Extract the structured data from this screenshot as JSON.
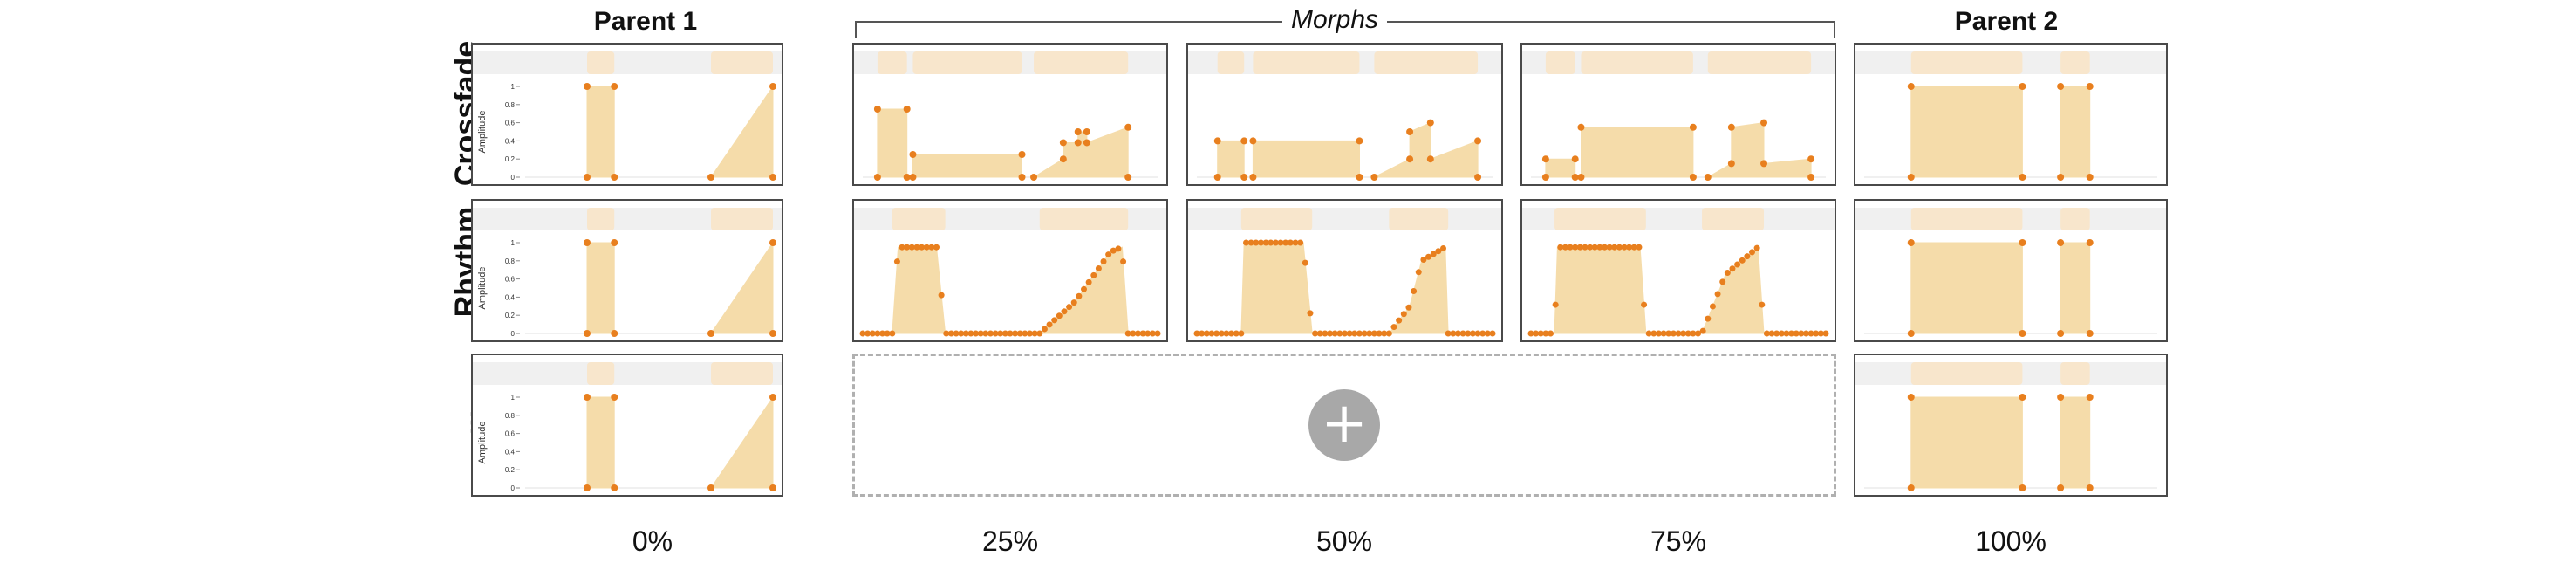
{
  "headers": {
    "parent1": "Parent 1",
    "morphs": "Morphs",
    "parent2": "Parent 2"
  },
  "rows": [
    "Crossfade",
    "Rhythm",
    "..."
  ],
  "percentages": [
    "0%",
    "25%",
    "50%",
    "75%",
    "100%"
  ],
  "axis": {
    "label": "Amplitude",
    "ticks": [
      "1",
      "0.8",
      "0.6",
      "0.4",
      "0.2",
      "0"
    ]
  },
  "add_button_icon": "plus-icon",
  "colors": {
    "fill": "#f5dcaa",
    "point": "#e87f1e",
    "band": "#f0f0f0",
    "band_shape": "#f8e6cc",
    "border": "#4a4a4a",
    "dashed": "#b0b0b0"
  },
  "envelopes": {
    "parent1": [
      [
        [
          0.25,
          0
        ],
        [
          0.25,
          1
        ],
        [
          0.36,
          1
        ],
        [
          0.36,
          0
        ]
      ],
      [
        [
          0.75,
          0
        ],
        [
          1.0,
          1
        ],
        [
          1.0,
          0
        ]
      ]
    ],
    "parent2": [
      [
        [
          0.16,
          0
        ],
        [
          0.16,
          1
        ],
        [
          0.54,
          1
        ],
        [
          0.54,
          0
        ]
      ],
      [
        [
          0.67,
          0
        ],
        [
          0.67,
          1
        ],
        [
          0.77,
          1
        ],
        [
          0.77,
          0
        ]
      ]
    ],
    "crossfade": [
      [
        [
          [
            0.05,
            0
          ],
          [
            0.05,
            0.75
          ],
          [
            0.15,
            0.75
          ],
          [
            0.15,
            0
          ]
        ],
        [
          [
            0.17,
            0
          ],
          [
            0.17,
            0.25
          ],
          [
            0.54,
            0.25
          ],
          [
            0.54,
            0
          ]
        ],
        [
          [
            0.58,
            0
          ],
          [
            0.68,
            0.2
          ],
          [
            0.68,
            0.38
          ],
          [
            0.73,
            0.38
          ],
          [
            0.73,
            0.5
          ],
          [
            0.76,
            0.5
          ],
          [
            0.76,
            0.38
          ],
          [
            0.9,
            0.55
          ],
          [
            0.9,
            0
          ]
        ]
      ],
      [
        [
          [
            0.07,
            0
          ],
          [
            0.07,
            0.4
          ],
          [
            0.16,
            0.4
          ],
          [
            0.16,
            0
          ]
        ],
        [
          [
            0.19,
            0
          ],
          [
            0.19,
            0.4
          ],
          [
            0.55,
            0.4
          ],
          [
            0.55,
            0
          ]
        ],
        [
          [
            0.6,
            0
          ],
          [
            0.72,
            0.2
          ],
          [
            0.72,
            0.5
          ],
          [
            0.79,
            0.6
          ],
          [
            0.79,
            0.2
          ],
          [
            0.95,
            0.4
          ],
          [
            0.95,
            0
          ]
        ]
      ],
      [
        [
          [
            0.05,
            0
          ],
          [
            0.05,
            0.2
          ],
          [
            0.15,
            0.2
          ],
          [
            0.15,
            0
          ]
        ],
        [
          [
            0.17,
            0
          ],
          [
            0.17,
            0.55
          ],
          [
            0.55,
            0.55
          ],
          [
            0.55,
            0
          ]
        ],
        [
          [
            0.6,
            0
          ],
          [
            0.68,
            0.15
          ],
          [
            0.68,
            0.55
          ],
          [
            0.79,
            0.6
          ],
          [
            0.79,
            0.15
          ],
          [
            0.95,
            0.2
          ],
          [
            0.95,
            0
          ]
        ]
      ]
    ],
    "rhythm": [
      [
        [
          [
            0.1,
            0
          ],
          [
            0.12,
            0.95
          ],
          [
            0.25,
            0.95
          ],
          [
            0.28,
            0
          ]
        ],
        [
          [
            0.6,
            0
          ],
          [
            0.72,
            0.35
          ],
          [
            0.84,
            0.9
          ],
          [
            0.88,
            0.95
          ],
          [
            0.9,
            0
          ]
        ]
      ],
      [
        [
          [
            0.15,
            0
          ],
          [
            0.16,
            1
          ],
          [
            0.36,
            1
          ],
          [
            0.39,
            0
          ]
        ],
        [
          [
            0.65,
            0
          ],
          [
            0.72,
            0.3
          ],
          [
            0.76,
            0.8
          ],
          [
            0.84,
            0.95
          ],
          [
            0.85,
            0
          ]
        ]
      ],
      [
        [
          [
            0.08,
            0
          ],
          [
            0.09,
            0.95
          ],
          [
            0.37,
            0.95
          ],
          [
            0.39,
            0
          ]
        ],
        [
          [
            0.58,
            0
          ],
          [
            0.66,
            0.65
          ],
          [
            0.77,
            0.95
          ],
          [
            0.79,
            0
          ]
        ]
      ]
    ]
  }
}
